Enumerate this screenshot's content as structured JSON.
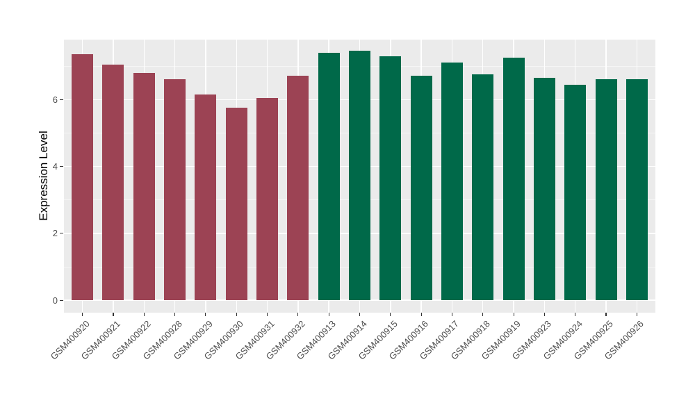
{
  "chart_data": {
    "type": "bar",
    "title": "",
    "xlabel": "",
    "ylabel": "Expression Level",
    "legend": "none",
    "grid": "major and minor horizontal white gridlines, major vertical white gridlines at category centers",
    "background": {
      "panel": "#EBEBEB",
      "outer": "#FFFFFF",
      "grid_major": "#FFFFFF",
      "axis_text": "#4D4D4D",
      "tick_mark": "#333333",
      "axis_title": "#000000"
    },
    "group_colors": {
      "maroon": "#9C4354",
      "green": "#006949"
    },
    "categories": [
      "GSM400920",
      "GSM400921",
      "GSM400922",
      "GSM400928",
      "GSM400929",
      "GSM400930",
      "GSM400931",
      "GSM400932",
      "GSM400913",
      "GSM400914",
      "GSM400915",
      "GSM400916",
      "GSM400917",
      "GSM400918",
      "GSM400919",
      "GSM400923",
      "GSM400924",
      "GSM400925",
      "GSM400926"
    ],
    "values": [
      7.35,
      7.05,
      6.8,
      6.6,
      6.15,
      5.75,
      6.05,
      6.7,
      7.4,
      7.45,
      7.3,
      6.7,
      7.1,
      6.75,
      7.25,
      6.65,
      6.45,
      6.6,
      6.6
    ],
    "bar_group": [
      "maroon",
      "maroon",
      "maroon",
      "maroon",
      "maroon",
      "maroon",
      "maroon",
      "maroon",
      "green",
      "green",
      "green",
      "green",
      "green",
      "green",
      "green",
      "green",
      "green",
      "green",
      "green"
    ],
    "yticks": [
      0,
      2,
      4,
      6
    ],
    "yticks_minor": [
      1,
      3,
      5,
      7
    ],
    "ylim": [
      -0.37,
      7.79
    ],
    "x_label_angle_deg": 45,
    "bar_width_fraction": 0.7
  }
}
